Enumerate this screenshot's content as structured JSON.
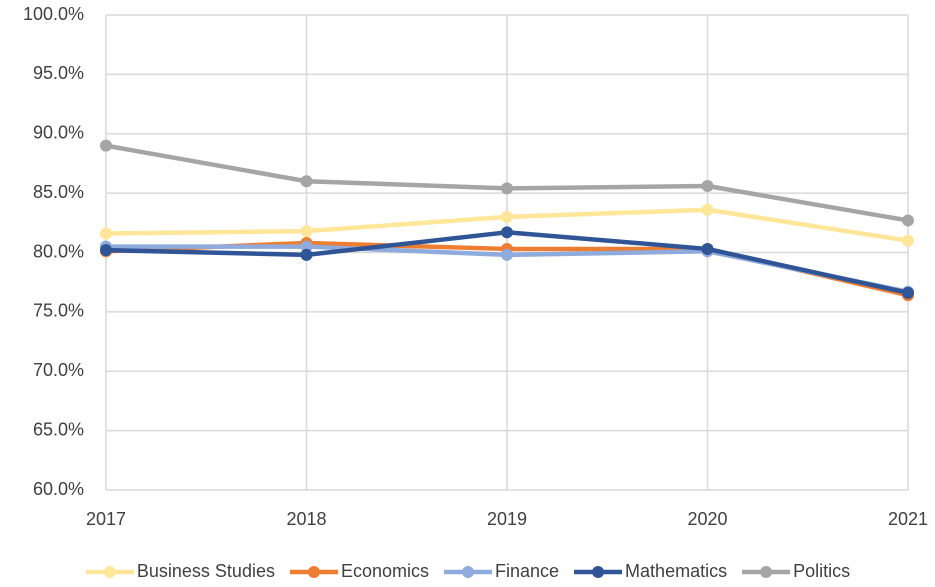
{
  "chart_data": {
    "type": "line",
    "x": [
      2017,
      2018,
      2019,
      2020,
      2021
    ],
    "xlim": [
      2017,
      2021
    ],
    "xticks": [
      2017,
      2018,
      2019,
      2020,
      2021
    ],
    "ylim": [
      60,
      100
    ],
    "yticks": [
      {
        "value": 60,
        "label": "60.0%"
      },
      {
        "value": 65,
        "label": "65.0%"
      },
      {
        "value": 70,
        "label": "70.0%"
      },
      {
        "value": 75,
        "label": "75.0%"
      },
      {
        "value": 80,
        "label": "80.0%"
      },
      {
        "value": 85,
        "label": "85.0%"
      },
      {
        "value": 90,
        "label": "90.0%"
      },
      {
        "value": 95,
        "label": "95.0%"
      },
      {
        "value": 100,
        "label": "100.0%"
      }
    ],
    "grid": true,
    "legend": "bottom",
    "series": [
      {
        "name": "Business Studies",
        "color": "#ffe699",
        "values": [
          81.6,
          81.8,
          83.0,
          83.6,
          81.0
        ]
      },
      {
        "name": "Economics",
        "color": "#ed7d31",
        "values": [
          80.1,
          80.8,
          80.3,
          80.3,
          76.4
        ]
      },
      {
        "name": "Finance",
        "color": "#8faadc",
        "values": [
          80.5,
          80.5,
          79.8,
          80.1,
          76.7
        ]
      },
      {
        "name": "Mathematics",
        "color": "#2f5597",
        "values": [
          80.2,
          79.8,
          81.7,
          80.3,
          76.6
        ]
      },
      {
        "name": "Politics",
        "color": "#a5a5a5",
        "values": [
          89.0,
          86.0,
          85.4,
          85.6,
          82.7
        ]
      }
    ]
  }
}
